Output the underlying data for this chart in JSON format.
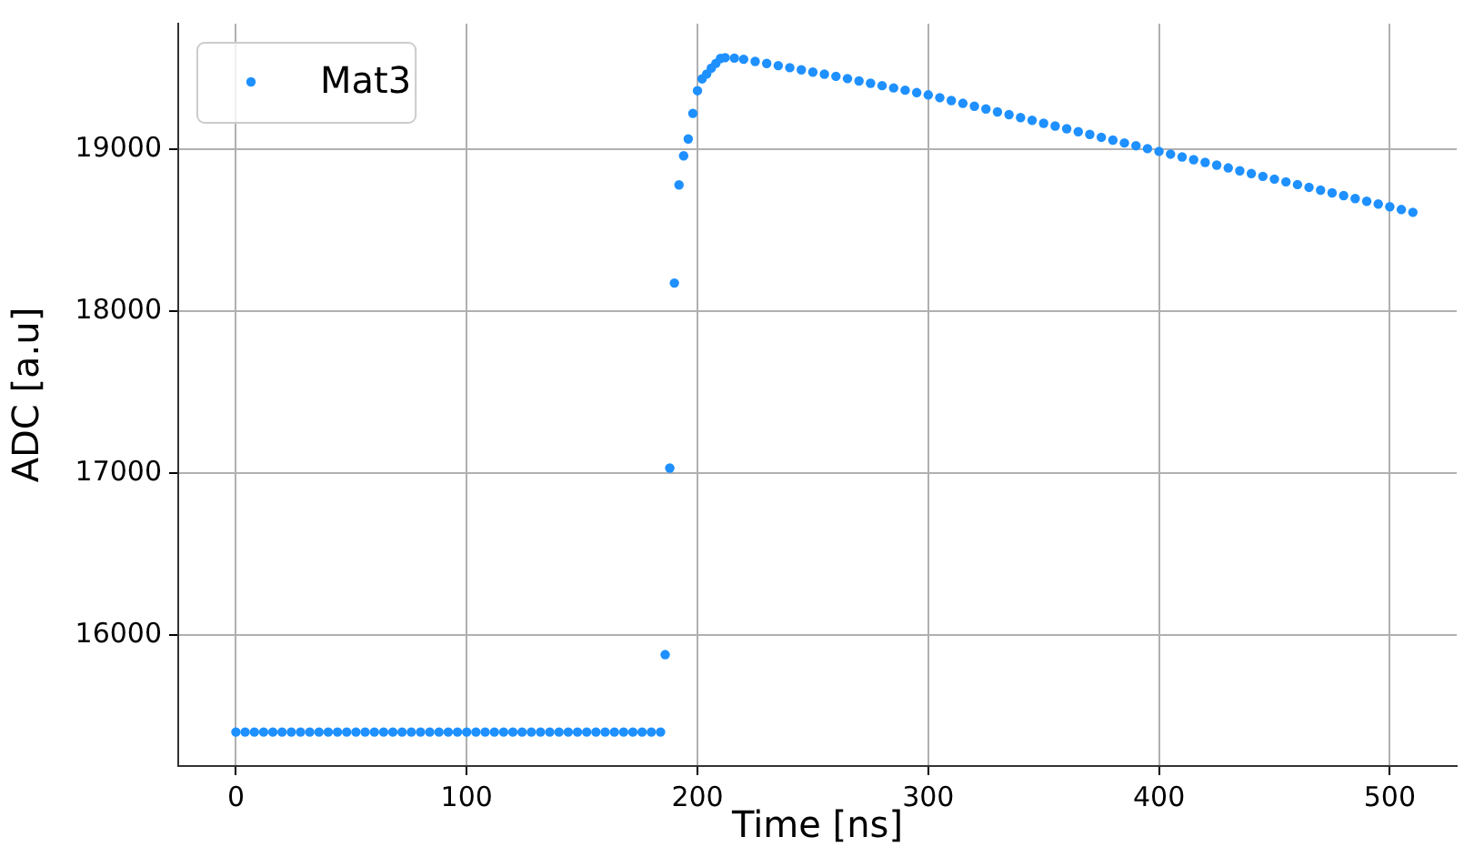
{
  "chart_data": {
    "type": "scatter",
    "xlabel": "Time [ns]",
    "ylabel": "ADC [a.u]",
    "xlim": [
      -25,
      529
    ],
    "ylim": [
      15190,
      19775
    ],
    "xticks": [
      0,
      100,
      200,
      300,
      400,
      500
    ],
    "yticks": [
      16000,
      17000,
      18000,
      19000
    ],
    "grid": true,
    "legend": "top left",
    "marker": "circle",
    "series": [
      {
        "name": "Mat3",
        "color": "#1e90ff",
        "x": [
          0,
          4,
          8,
          12,
          16,
          20,
          24,
          28,
          32,
          36,
          40,
          44,
          48,
          52,
          56,
          60,
          64,
          68,
          72,
          76,
          80,
          84,
          88,
          92,
          96,
          100,
          104,
          108,
          112,
          116,
          120,
          124,
          128,
          132,
          136,
          140,
          144,
          148,
          152,
          156,
          160,
          164,
          168,
          172,
          176,
          180,
          184,
          186,
          188,
          190,
          192,
          194,
          196,
          198,
          200,
          202,
          204,
          206,
          208,
          210,
          212,
          216,
          220,
          225,
          230,
          235,
          240,
          245,
          250,
          255,
          260,
          265,
          270,
          275,
          280,
          285,
          290,
          295,
          300,
          305,
          310,
          315,
          320,
          325,
          330,
          335,
          340,
          345,
          350,
          355,
          360,
          365,
          370,
          375,
          380,
          385,
          390,
          395,
          400,
          405,
          410,
          415,
          420,
          425,
          430,
          435,
          440,
          445,
          450,
          455,
          460,
          465,
          470,
          475,
          480,
          485,
          490,
          495,
          500,
          505,
          510
        ],
        "values": [
          15400,
          15400,
          15400,
          15400,
          15400,
          15400,
          15400,
          15400,
          15400,
          15400,
          15400,
          15400,
          15400,
          15400,
          15400,
          15400,
          15400,
          15400,
          15400,
          15400,
          15400,
          15400,
          15400,
          15400,
          15400,
          15400,
          15400,
          15400,
          15400,
          15400,
          15400,
          15400,
          15400,
          15400,
          15400,
          15400,
          15400,
          15400,
          15400,
          15400,
          15400,
          15400,
          15400,
          15400,
          15400,
          15400,
          15400,
          15878,
          17030,
          18173,
          18779,
          18959,
          19063,
          19221,
          19361,
          19434,
          19464,
          19500,
          19530,
          19560,
          19565,
          19562,
          19555,
          19542,
          19529,
          19516,
          19503,
          19490,
          19476,
          19463,
          19450,
          19436,
          19421,
          19407,
          19392,
          19378,
          19364,
          19349,
          19335,
          19318,
          19300,
          19283,
          19265,
          19248,
          19230,
          19213,
          19195,
          19178,
          19160,
          19143,
          19126,
          19108,
          19091,
          19073,
          19056,
          19038,
          19021,
          19003,
          18986,
          18969,
          18952,
          18935,
          18918,
          18901,
          18884,
          18866,
          18849,
          18832,
          18815,
          18798,
          18781,
          18764,
          18747,
          18730,
          18713,
          18695,
          18678,
          18661,
          18644,
          18627,
          18610
        ]
      }
    ]
  }
}
